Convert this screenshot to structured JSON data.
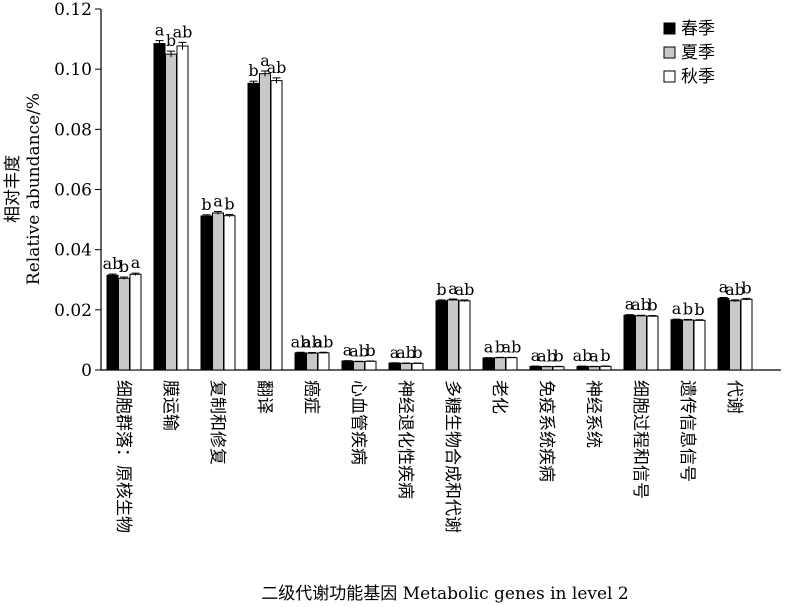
{
  "chart_data": {
    "type": "bar",
    "xlabel": "二级代谢功能基因 Metabolic genes in level 2",
    "ylabel_cn": "相对丰度",
    "ylabel_en": "Relative abundance/%",
    "ylim": [
      0,
      0.12
    ],
    "yticks": [
      "0",
      "0.02",
      "0.04",
      "0.06",
      "0.08",
      "0.10",
      "0.12"
    ],
    "legend_position": "top-right",
    "categories": [
      "细胞群落：原核生物",
      "膜运输",
      "复制和修复",
      "翻译",
      "癌症",
      "心血管疾病",
      "神经退化性疾病",
      "多糖生物合成和代谢",
      "老化",
      "免疫系统疾病",
      "神经系统",
      "细胞过程和信号",
      "遗传信息信号",
      "代谢"
    ],
    "series": [
      {
        "name": "春季",
        "fill": "#000000",
        "values": [
          0.0315,
          0.1085,
          0.0512,
          0.0953,
          0.0057,
          0.003,
          0.0023,
          0.023,
          0.004,
          0.0012,
          0.0012,
          0.0182,
          0.0167,
          0.0238
        ],
        "errors": [
          0.0004,
          0.001,
          0.0004,
          0.0007,
          0.0002,
          0.0001,
          0.0001,
          0.0003,
          0.0001,
          0.0001,
          0.0001,
          0.0002,
          0.0002,
          0.0003
        ],
        "letters": [
          "ab",
          "a",
          "b",
          "b",
          "ab",
          "a",
          "a",
          "b",
          "a",
          "a",
          "ab",
          "a",
          "a",
          "a"
        ]
      },
      {
        "name": "夏季",
        "fill": "#c8c8c8",
        "values": [
          0.0305,
          0.105,
          0.0522,
          0.0985,
          0.0056,
          0.0028,
          0.0022,
          0.0233,
          0.0041,
          0.0011,
          0.0011,
          0.018,
          0.0166,
          0.023
        ],
        "errors": [
          0.0004,
          0.001,
          0.0005,
          0.0009,
          0.0002,
          0.0001,
          0.0001,
          0.0003,
          0.0001,
          0.0001,
          0.0001,
          0.0002,
          0.0002,
          0.0003
        ],
        "letters": [
          "b",
          "b",
          "a",
          "a",
          "ab",
          "ab",
          "ab",
          "a",
          "b",
          "ab",
          "a",
          "ab",
          "b",
          "ab"
        ]
      },
      {
        "name": "秋季",
        "fill": "#ffffff",
        "values": [
          0.0318,
          0.1077,
          0.0513,
          0.0962,
          0.0057,
          0.0029,
          0.0022,
          0.023,
          0.0041,
          0.0011,
          0.0012,
          0.0179,
          0.0165,
          0.0235
        ],
        "errors": [
          0.0004,
          0.0012,
          0.0004,
          0.0009,
          0.0002,
          0.0001,
          0.0001,
          0.0003,
          0.0001,
          0.0001,
          0.0001,
          0.0002,
          0.0002,
          0.0003
        ],
        "letters": [
          "a",
          "ab",
          "b",
          "ab",
          "ab",
          "b",
          "b",
          "ab",
          "ab",
          "b",
          "b",
          "b",
          "b",
          "b"
        ]
      }
    ]
  }
}
